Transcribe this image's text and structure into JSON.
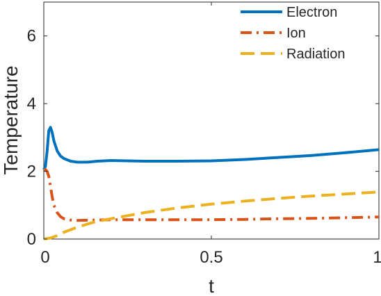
{
  "chart_data": {
    "type": "line",
    "xlabel": "t",
    "ylabel": "Temperature",
    "xlim": [
      0,
      1
    ],
    "ylim": [
      0,
      7
    ],
    "xticks": [
      0,
      0.5,
      1
    ],
    "xtick_labels": [
      "0",
      "0.5",
      "1"
    ],
    "yticks": [
      0,
      2,
      4,
      6
    ],
    "ytick_labels": [
      "0",
      "2",
      "4",
      "6"
    ],
    "grid": false,
    "legend_position": "top-right",
    "series": [
      {
        "name": "Electron",
        "color": "#0072BD",
        "style": "solid",
        "x": [
          0,
          0.005,
          0.01,
          0.015,
          0.02,
          0.025,
          0.03,
          0.04,
          0.05,
          0.06,
          0.08,
          0.1,
          0.13,
          0.16,
          0.2,
          0.25,
          0.3,
          0.4,
          0.5,
          0.6,
          0.7,
          0.8,
          0.9,
          1.0
        ],
        "values": [
          2.05,
          2.15,
          2.6,
          3.2,
          3.3,
          3.15,
          2.9,
          2.6,
          2.45,
          2.38,
          2.3,
          2.27,
          2.27,
          2.3,
          2.32,
          2.31,
          2.3,
          2.3,
          2.31,
          2.35,
          2.41,
          2.47,
          2.55,
          2.64
        ]
      },
      {
        "name": "Ion",
        "color": "#D95319",
        "style": "dashdot",
        "x": [
          0,
          0.005,
          0.01,
          0.015,
          0.02,
          0.025,
          0.03,
          0.04,
          0.05,
          0.06,
          0.08,
          0.1,
          0.15,
          0.2,
          0.3,
          0.4,
          0.5,
          0.6,
          0.7,
          0.8,
          0.9,
          1.0
        ],
        "values": [
          2.05,
          2.05,
          2.0,
          1.85,
          1.55,
          1.25,
          1.0,
          0.78,
          0.66,
          0.6,
          0.56,
          0.55,
          0.56,
          0.57,
          0.57,
          0.57,
          0.57,
          0.58,
          0.6,
          0.61,
          0.63,
          0.65
        ]
      },
      {
        "name": "Radiation",
        "color": "#EDB120",
        "style": "dashed",
        "x": [
          0,
          0.02,
          0.04,
          0.06,
          0.1,
          0.15,
          0.2,
          0.3,
          0.4,
          0.5,
          0.6,
          0.7,
          0.8,
          0.9,
          1.0
        ],
        "values": [
          0.0,
          0.03,
          0.1,
          0.2,
          0.35,
          0.5,
          0.6,
          0.78,
          0.92,
          1.03,
          1.12,
          1.2,
          1.27,
          1.33,
          1.39
        ]
      }
    ]
  }
}
